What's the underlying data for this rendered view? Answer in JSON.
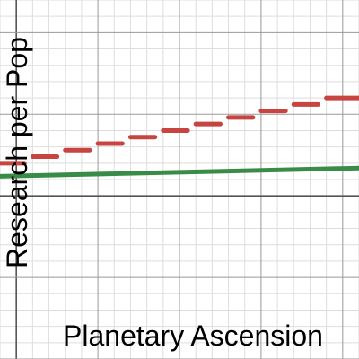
{
  "chart_data": {
    "type": "line",
    "title": "",
    "xlabel": "Planetary Ascension",
    "ylabel": "Research per Pop",
    "xlim": [
      -0.1,
      2.1
    ],
    "ylim": [
      -1.0,
      1.2
    ],
    "grid": true,
    "tick_labels_visible": false,
    "series": [
      {
        "color": "#c74440",
        "style": "step-segments",
        "segments": [
          {
            "x0": -0.1,
            "x1": 0.05,
            "y": 0.2
          },
          {
            "x0": 0.1,
            "x1": 0.25,
            "y": 0.24
          },
          {
            "x0": 0.3,
            "x1": 0.45,
            "y": 0.28
          },
          {
            "x0": 0.5,
            "x1": 0.65,
            "y": 0.32
          },
          {
            "x0": 0.7,
            "x1": 0.85,
            "y": 0.36
          },
          {
            "x0": 0.9,
            "x1": 1.05,
            "y": 0.4
          },
          {
            "x0": 1.1,
            "x1": 1.25,
            "y": 0.44
          },
          {
            "x0": 1.3,
            "x1": 1.45,
            "y": 0.48
          },
          {
            "x0": 1.5,
            "x1": 1.65,
            "y": 0.52
          },
          {
            "x0": 1.7,
            "x1": 1.85,
            "y": 0.56
          },
          {
            "x0": 1.9,
            "x1": 2.1,
            "y": 0.6
          }
        ]
      },
      {
        "color": "#388c46",
        "style": "line",
        "x": [
          -0.1,
          2.1
        ],
        "y": [
          0.12,
          0.17
        ]
      }
    ]
  }
}
